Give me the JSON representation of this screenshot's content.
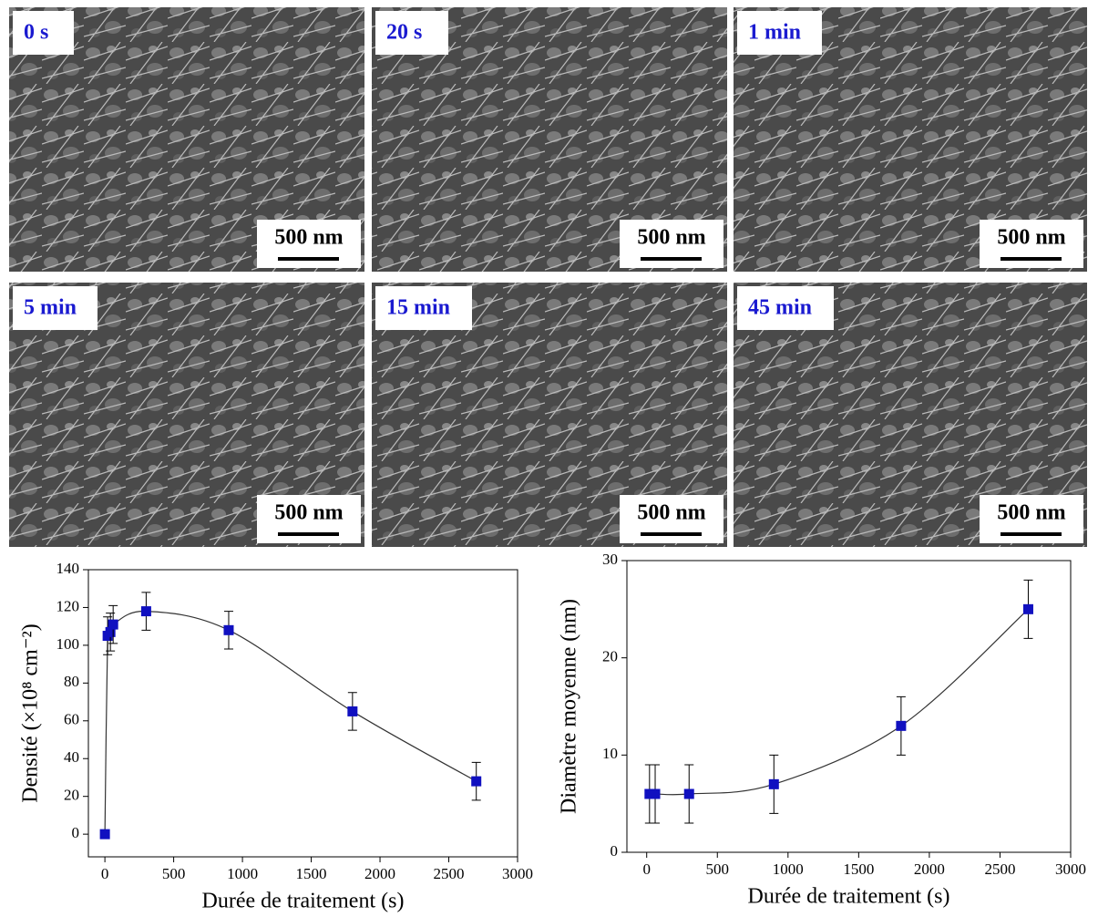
{
  "panels": [
    {
      "label": "0 s",
      "scale": "500 nm"
    },
    {
      "label": "20 s",
      "scale": "500 nm"
    },
    {
      "label": "1 min",
      "scale": "500 nm"
    },
    {
      "label": "5 min",
      "scale": "500 nm"
    },
    {
      "label": "15 min",
      "scale": "500 nm"
    },
    {
      "label": "45 min",
      "scale": "500 nm"
    }
  ],
  "chart_data": [
    {
      "type": "scatter",
      "x_label": "Durée de traitement  (s)",
      "y_label": "Densité (×10⁸ cm⁻²)",
      "x": [
        0,
        20,
        40,
        60,
        300,
        900,
        1800,
        2700
      ],
      "values": [
        0,
        105,
        107,
        111,
        118,
        108,
        65,
        28
      ],
      "errors": [
        null,
        10,
        10,
        10,
        10,
        10,
        10,
        10
      ],
      "color": "#1010c0",
      "fit_line": true,
      "xlim": [
        -120,
        3000
      ],
      "xticks": [
        0,
        500,
        1000,
        1500,
        2000,
        2500,
        3000
      ],
      "ylim": [
        -12,
        140
      ],
      "yticks": [
        0,
        20,
        40,
        60,
        80,
        100,
        120,
        140
      ]
    },
    {
      "type": "scatter",
      "x_label": "Durée de traitement  (s)",
      "y_label": "Diamètre moyenne (nm)",
      "x": [
        20,
        60,
        300,
        900,
        1800,
        2700
      ],
      "values": [
        6,
        6,
        6,
        7,
        13,
        25
      ],
      "errors": [
        3,
        3,
        3,
        3,
        3,
        3
      ],
      "color": "#1010c0",
      "fit_line": true,
      "xlim": [
        -140,
        3000
      ],
      "xticks": [
        0,
        500,
        1000,
        1500,
        2000,
        2500,
        3000
      ],
      "ylim": [
        0,
        30
      ],
      "yticks": [
        0,
        10,
        20,
        30
      ]
    }
  ]
}
